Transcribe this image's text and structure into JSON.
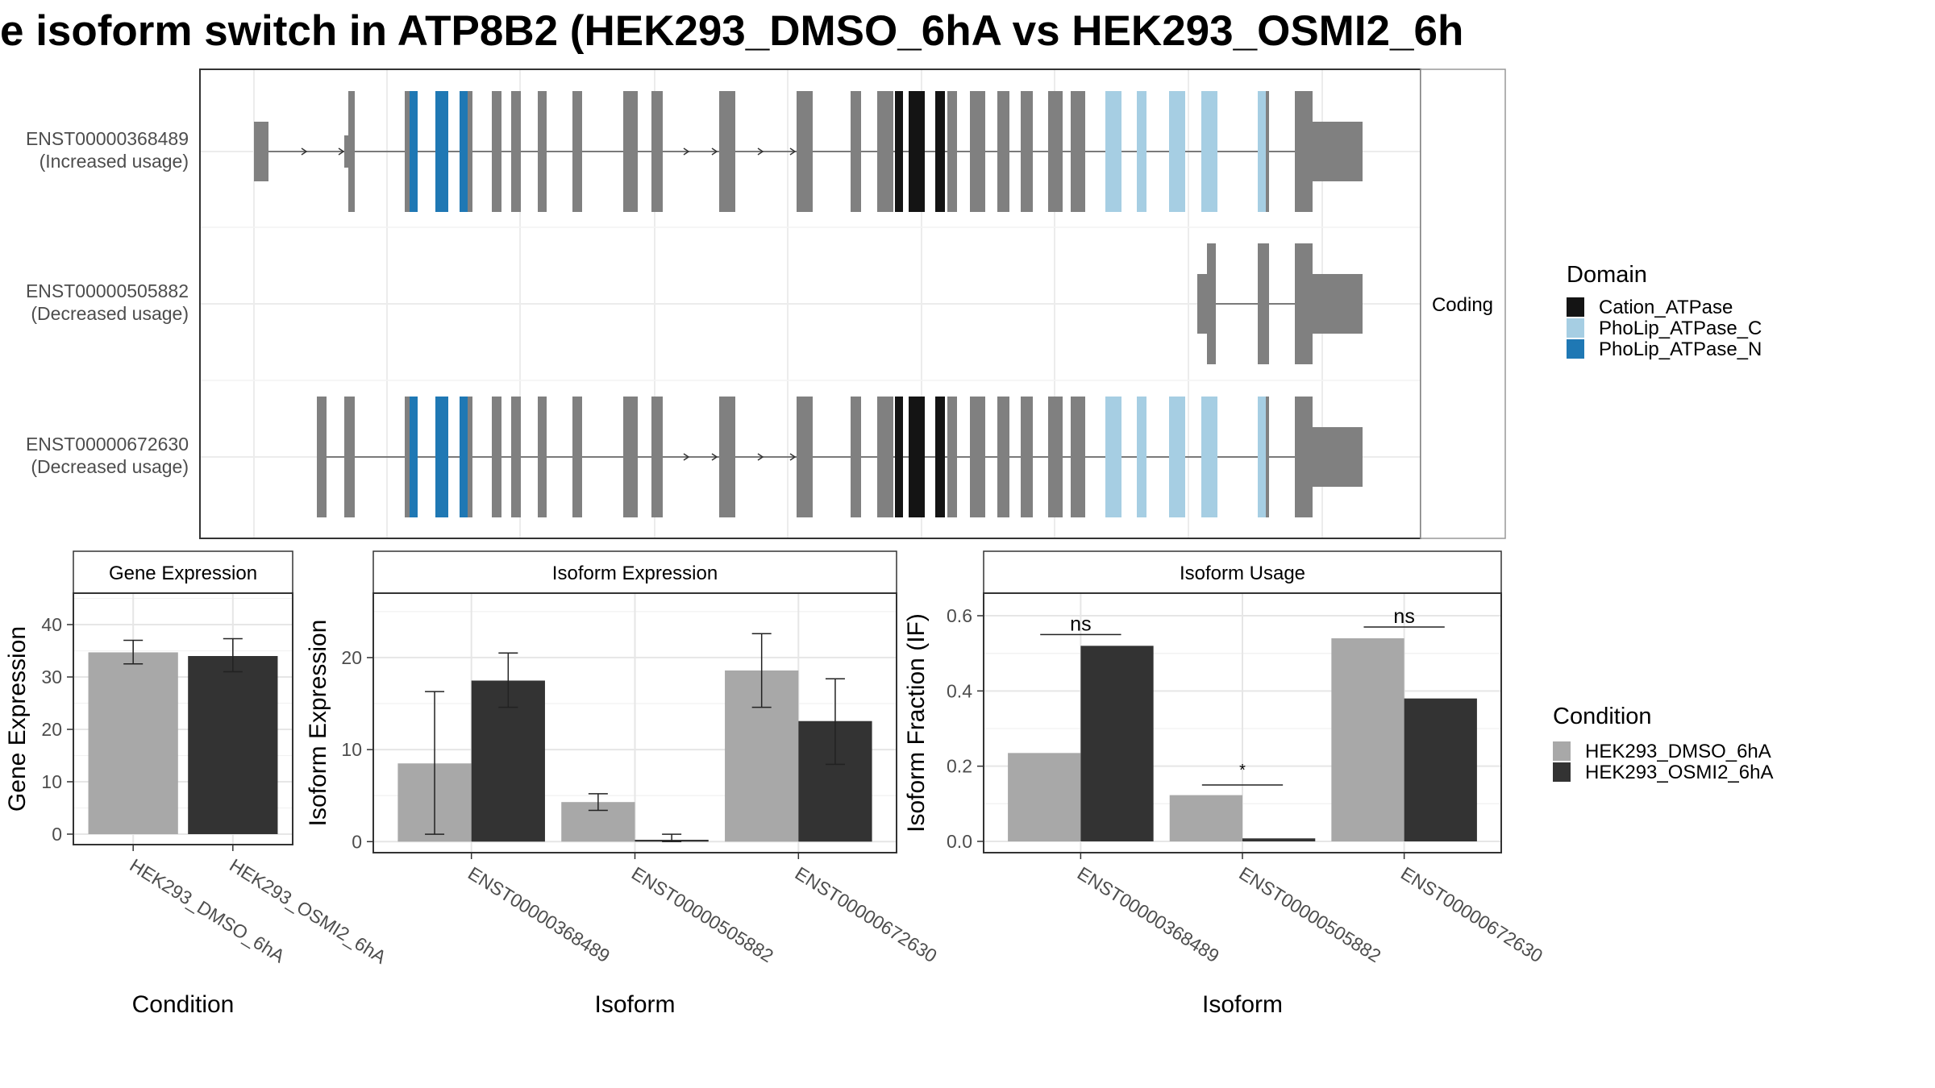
{
  "title": "e isoform switch in ATP8B2 (HEK293_DMSO_6hA vs HEK293_OSMI2_6h",
  "colors": {
    "exon": "#808080",
    "cation_atpase": "#141414",
    "pholip_c": "#a6cee3",
    "pholip_n": "#1f78b4",
    "dmso": "#a8a8a8",
    "osmi": "#333333"
  },
  "structure": {
    "facet_label": "Coding",
    "transcripts": [
      {
        "id": "ENST00000368489",
        "usage": "(Increased usage)"
      },
      {
        "id": "ENST00000505882",
        "usage": "(Decreased usage)"
      },
      {
        "id": "ENST00000672630",
        "usage": "(Decreased usage)"
      }
    ],
    "legend": {
      "title": "Domain",
      "items": [
        "Cation_ATPase",
        "PhoLip_ATPase_C",
        "PhoLip_ATPase_N"
      ]
    }
  },
  "chart_data": [
    {
      "type": "bar",
      "title": "Gene Expression",
      "xlabel": "Condition",
      "ylabel": "Gene Expression",
      "ylim": [
        -2,
        46
      ],
      "yticks": [
        0,
        10,
        20,
        30,
        40
      ],
      "categories": [
        "HEK293_DMSO_6hA",
        "HEK293_OSMI2_6hA"
      ],
      "values": [
        34.7,
        34.0
      ],
      "errors": [
        [
          32.5,
          37.0
        ],
        [
          31.0,
          37.3
        ]
      ]
    },
    {
      "type": "bar",
      "title": "Isoform Expression",
      "xlabel": "Isoform",
      "ylabel": "Isoform Expression",
      "ylim": [
        -1.2,
        27
      ],
      "yticks": [
        0,
        10,
        20
      ],
      "categories": [
        "ENST00000368489",
        "ENST00000505882",
        "ENST00000672630"
      ],
      "series": [
        {
          "name": "HEK293_DMSO_6hA",
          "values": [
            8.5,
            4.3,
            18.6
          ],
          "errors": [
            [
              0.8,
              16.3
            ],
            [
              3.4,
              5.2
            ],
            [
              14.6,
              22.6
            ]
          ]
        },
        {
          "name": "HEK293_OSMI2_6hA",
          "values": [
            17.5,
            0.2,
            13.1
          ],
          "errors": [
            [
              14.6,
              20.5
            ],
            [
              0.0,
              0.8
            ],
            [
              8.4,
              17.7
            ]
          ]
        }
      ]
    },
    {
      "type": "bar",
      "title": "Isoform Usage",
      "xlabel": "Isoform",
      "ylabel": "Isoform Fraction (IF)",
      "ylim": [
        -0.03,
        0.66
      ],
      "yticks": [
        "0.0",
        "0.2",
        "0.4",
        "0.6"
      ],
      "categories": [
        "ENST00000368489",
        "ENST00000505882",
        "ENST00000672630"
      ],
      "series": [
        {
          "name": "HEK293_DMSO_6hA",
          "values": [
            0.235,
            0.123,
            0.54
          ]
        },
        {
          "name": "HEK293_OSMI2_6hA",
          "values": [
            0.52,
            0.008,
            0.38
          ]
        }
      ],
      "significance": [
        "ns",
        "*",
        "ns"
      ],
      "significance_y": [
        0.55,
        0.15,
        0.57
      ]
    }
  ],
  "condition_legend": {
    "title": "Condition",
    "items": [
      "HEK293_DMSO_6hA",
      "HEK293_OSMI2_6hA"
    ]
  }
}
